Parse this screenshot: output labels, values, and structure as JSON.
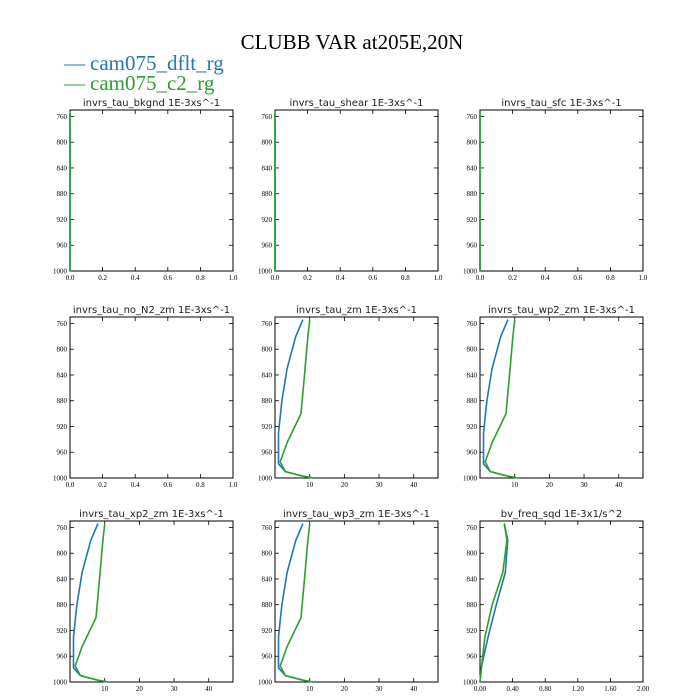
{
  "figure": {
    "title": "CLUBB VAR at205E,20N",
    "legend": [
      {
        "label": "cam075_dflt_rg",
        "color": "#1f77b4"
      },
      {
        "label": "cam075_c2_rg",
        "color": "#2ca02c"
      }
    ]
  },
  "chart_data": [
    {
      "type": "line",
      "title": "invrs_tau_bkgnd 1E-3xs^-1",
      "xlim": [
        0,
        1
      ],
      "ylim": [
        1000,
        750
      ],
      "x_ticks": [
        "0.0",
        "0.2",
        "0.4",
        "0.6",
        "0.8",
        "1.0"
      ],
      "y_ticks": [
        "760",
        "800",
        "840",
        "880",
        "920",
        "960",
        "1000"
      ],
      "series": [
        {
          "name": "cam075_dflt_rg",
          "color": "#1f77b4",
          "points": [
            [
              0,
              755
            ],
            [
              0,
              1000
            ]
          ]
        },
        {
          "name": "cam075_c2_rg",
          "color": "#2ca02c",
          "points": [
            [
              0,
              755
            ],
            [
              0,
              1000
            ]
          ]
        }
      ]
    },
    {
      "type": "line",
      "title": "invrs_tau_shear 1E-3xs^-1",
      "xlim": [
        0,
        1
      ],
      "ylim": [
        1000,
        750
      ],
      "x_ticks": [
        "0.0",
        "0.2",
        "0.4",
        "0.6",
        "0.8",
        "1.0"
      ],
      "y_ticks": [
        "760",
        "800",
        "840",
        "880",
        "920",
        "960",
        "1000"
      ],
      "series": [
        {
          "name": "cam075_dflt_rg",
          "color": "#1f77b4",
          "points": [
            [
              0,
              755
            ],
            [
              0,
              1000
            ]
          ]
        },
        {
          "name": "cam075_c2_rg",
          "color": "#2ca02c",
          "points": [
            [
              0,
              755
            ],
            [
              0,
              1000
            ]
          ]
        }
      ]
    },
    {
      "type": "line",
      "title": "invrs_tau_sfc 1E-3xs^-1",
      "xlim": [
        0,
        1
      ],
      "ylim": [
        1000,
        750
      ],
      "x_ticks": [
        "0.0",
        "0.2",
        "0.4",
        "0.6",
        "0.8",
        "1.0"
      ],
      "y_ticks": [
        "760",
        "800",
        "840",
        "880",
        "920",
        "960",
        "1000"
      ],
      "series": [
        {
          "name": "cam075_dflt_rg",
          "color": "#1f77b4",
          "points": [
            [
              0,
              755
            ],
            [
              0,
              1000
            ]
          ]
        },
        {
          "name": "cam075_c2_rg",
          "color": "#2ca02c",
          "points": [
            [
              0,
              755
            ],
            [
              0,
              1000
            ]
          ]
        }
      ]
    },
    {
      "type": "line",
      "title": "invrs_tau_no_N2_zm 1E-3xs^-1",
      "xlim": [
        0,
        1
      ],
      "ylim": [
        1000,
        750
      ],
      "x_ticks": [
        "0.0",
        "0.2",
        "0.4",
        "0.6",
        "0.8",
        "1.0"
      ],
      "y_ticks": [
        "760",
        "800",
        "840",
        "880",
        "920",
        "960",
        "1000"
      ],
      "series": []
    },
    {
      "type": "line",
      "title": "invrs_tau_zm 1E-3xs^-1",
      "xlim": [
        0,
        47
      ],
      "ylim": [
        1000,
        750
      ],
      "x_ticks": [
        "10",
        "20",
        "30",
        "40"
      ],
      "y_ticks": [
        "760",
        "800",
        "840",
        "880",
        "920",
        "960",
        "1000"
      ],
      "series": [
        {
          "name": "cam075_dflt_rg",
          "color": "#1f77b4",
          "points": [
            [
              8,
              755
            ],
            [
              6,
              780
            ],
            [
              3.5,
              830
            ],
            [
              2,
              880
            ],
            [
              1,
              930
            ],
            [
              1,
              978
            ],
            [
              3,
              990
            ],
            [
              8,
              997
            ],
            [
              11,
              1000
            ]
          ]
        },
        {
          "name": "cam075_c2_rg",
          "color": "#2ca02c",
          "points": [
            [
              10,
              755
            ],
            [
              9.5,
              780
            ],
            [
              8.5,
              840
            ],
            [
              7.5,
              900
            ],
            [
              3.5,
              945
            ],
            [
              1.5,
              975
            ],
            [
              3,
              990
            ],
            [
              8,
              997
            ],
            [
              11,
              1000
            ]
          ]
        }
      ]
    },
    {
      "type": "line",
      "title": "invrs_tau_wp2_zm 1E-3xs^-1",
      "xlim": [
        0,
        47
      ],
      "ylim": [
        1000,
        750
      ],
      "x_ticks": [
        "10",
        "20",
        "30",
        "40"
      ],
      "y_ticks": [
        "760",
        "800",
        "840",
        "880",
        "920",
        "960",
        "1000"
      ],
      "series": [
        {
          "name": "cam075_dflt_rg",
          "color": "#1f77b4",
          "points": [
            [
              8,
              755
            ],
            [
              6,
              780
            ],
            [
              3.5,
              830
            ],
            [
              2,
              880
            ],
            [
              1,
              930
            ],
            [
              1,
              978
            ],
            [
              3,
              990
            ],
            [
              8,
              997
            ],
            [
              11,
              1000
            ]
          ]
        },
        {
          "name": "cam075_c2_rg",
          "color": "#2ca02c",
          "points": [
            [
              10,
              755
            ],
            [
              9.5,
              780
            ],
            [
              8.5,
              840
            ],
            [
              7.5,
              900
            ],
            [
              3.5,
              945
            ],
            [
              1.5,
              975
            ],
            [
              3,
              990
            ],
            [
              8,
              997
            ],
            [
              11,
              1000
            ]
          ]
        }
      ]
    },
    {
      "type": "line",
      "title": "invrs_tau_xp2_zm 1E-3xs^-1",
      "xlim": [
        0,
        47
      ],
      "ylim": [
        1000,
        750
      ],
      "x_ticks": [
        "10",
        "20",
        "30",
        "40"
      ],
      "y_ticks": [
        "760",
        "800",
        "840",
        "880",
        "920",
        "960",
        "1000"
      ],
      "series": [
        {
          "name": "cam075_dflt_rg",
          "color": "#1f77b4",
          "points": [
            [
              8,
              755
            ],
            [
              6,
              780
            ],
            [
              3.5,
              830
            ],
            [
              2,
              880
            ],
            [
              1,
              930
            ],
            [
              1,
              978
            ],
            [
              3,
              990
            ],
            [
              8,
              997
            ],
            [
              11,
              1000
            ]
          ]
        },
        {
          "name": "cam075_c2_rg",
          "color": "#2ca02c",
          "points": [
            [
              10,
              755
            ],
            [
              9.5,
              780
            ],
            [
              8.5,
              840
            ],
            [
              7.5,
              900
            ],
            [
              3.5,
              945
            ],
            [
              1.5,
              975
            ],
            [
              3,
              990
            ],
            [
              8,
              997
            ],
            [
              11,
              1000
            ]
          ]
        }
      ]
    },
    {
      "type": "line",
      "title": "invrs_tau_wp3_zm 1E-3xs^-1",
      "xlim": [
        0,
        47
      ],
      "ylim": [
        1000,
        750
      ],
      "x_ticks": [
        "10",
        "20",
        "30",
        "40"
      ],
      "y_ticks": [
        "760",
        "800",
        "840",
        "880",
        "920",
        "960",
        "1000"
      ],
      "series": [
        {
          "name": "cam075_dflt_rg",
          "color": "#1f77b4",
          "points": [
            [
              8,
              755
            ],
            [
              6,
              780
            ],
            [
              3.5,
              830
            ],
            [
              2,
              880
            ],
            [
              1,
              930
            ],
            [
              1,
              978
            ],
            [
              3,
              990
            ],
            [
              8,
              997
            ],
            [
              11,
              1000
            ]
          ]
        },
        {
          "name": "cam075_c2_rg",
          "color": "#2ca02c",
          "points": [
            [
              10,
              755
            ],
            [
              9.5,
              780
            ],
            [
              8.5,
              840
            ],
            [
              7.5,
              900
            ],
            [
              3.5,
              945
            ],
            [
              1.5,
              975
            ],
            [
              3,
              990
            ],
            [
              8,
              997
            ],
            [
              11,
              1000
            ]
          ]
        }
      ]
    },
    {
      "type": "line",
      "title": "bv_freq_sqd 1E-3x1/s^2",
      "xlim": [
        0,
        2
      ],
      "ylim": [
        1000,
        750
      ],
      "x_ticks": [
        "0.00",
        "0.40",
        "0.80",
        "1.20",
        "1.60",
        "2.00"
      ],
      "y_ticks": [
        "760",
        "800",
        "840",
        "880",
        "920",
        "960",
        "1000"
      ],
      "series": [
        {
          "name": "cam075_dflt_rg",
          "color": "#1f77b4",
          "points": [
            [
              0.3,
              755
            ],
            [
              0.34,
              780
            ],
            [
              0.31,
              830
            ],
            [
              0.2,
              880
            ],
            [
              0.1,
              930
            ],
            [
              0.02,
              975
            ],
            [
              0.0,
              1000
            ]
          ]
        },
        {
          "name": "cam075_c2_rg",
          "color": "#2ca02c",
          "points": [
            [
              0.3,
              755
            ],
            [
              0.33,
              780
            ],
            [
              0.28,
              830
            ],
            [
              0.15,
              880
            ],
            [
              0.06,
              930
            ],
            [
              0.02,
              975
            ],
            [
              0.0,
              1000
            ]
          ]
        }
      ]
    }
  ]
}
